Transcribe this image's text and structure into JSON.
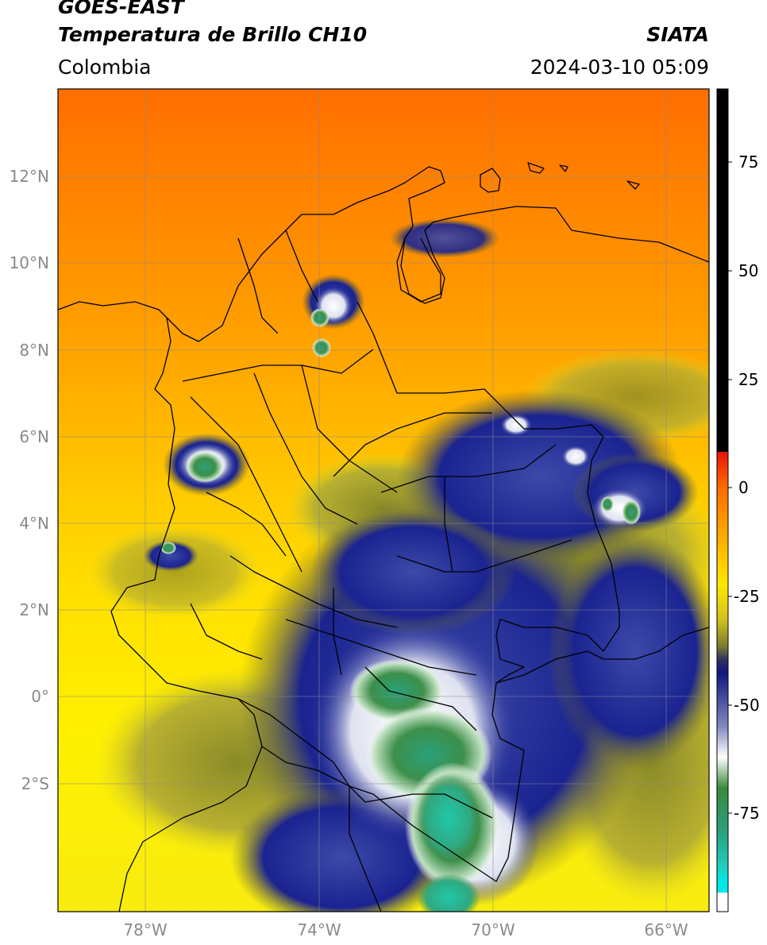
{
  "header": {
    "satellite": "GOES-EAST",
    "product": "Temperatura de Brillo CH10",
    "organization": "SIATA",
    "region": "Colombia",
    "datetime": "2024-03-10 05:09"
  },
  "map": {
    "lat_ticks": [
      "12°N",
      "10°N",
      "8°N",
      "6°N",
      "4°N",
      "2°N",
      "0°",
      "2°S"
    ],
    "lon_ticks": [
      "78°W",
      "74°W",
      "70°W",
      "66°W"
    ]
  },
  "colorbar": {
    "tick_labels": [
      "75",
      "50",
      "25",
      "0",
      "-25",
      "-50",
      "-75"
    ],
    "colors": {
      "black": "#000000",
      "red": "#e8140a",
      "orange": "#ff9a00",
      "yellow": "#fff200",
      "olive": "#8a8a20",
      "navy": "#101880",
      "white": "#ffffff",
      "green": "#2e8b3a",
      "teal": "#20c0a0",
      "cyan": "#00e8e8"
    }
  }
}
